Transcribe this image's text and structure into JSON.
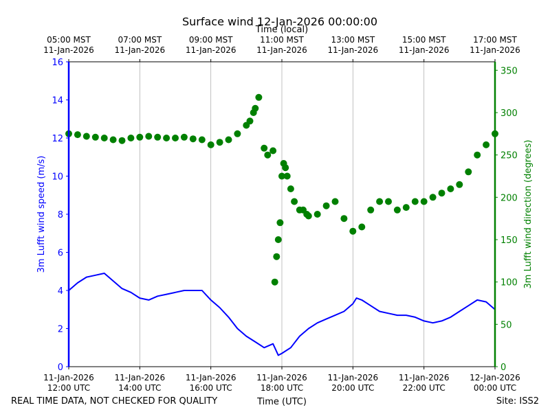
{
  "chart_data": {
    "type": "line+scatter",
    "title": "Surface wind 12-Jan-2026 00:00:00",
    "top_axis_title": "Time (local)",
    "bottom_axis_title": "Time (UTC)",
    "left_ylabel": "3m Lufft wind speed (m/s)",
    "right_ylabel": "3m Lufft wind direction (degrees)",
    "footer_left": "REAL TIME DATA, NOT CHECKED FOR QUALITY",
    "footer_right": "Site: ISS2",
    "colors": {
      "speed": "#0000ff",
      "direction": "#008000",
      "grid": "#b0b0b0",
      "axis": "#000000"
    },
    "x_range_hours": [
      12,
      24
    ],
    "ylim_speed": [
      0,
      16
    ],
    "ylim_direction": [
      0,
      360
    ],
    "left_ticks": [
      0,
      2,
      4,
      6,
      8,
      10,
      12,
      14,
      16
    ],
    "right_ticks": [
      0,
      50,
      100,
      150,
      200,
      250,
      300,
      350
    ],
    "bottom_ticks": [
      {
        "hour": 12,
        "line1": "11-Jan-2026",
        "line2": "12:00 UTC"
      },
      {
        "hour": 14,
        "line1": "11-Jan-2026",
        "line2": "14:00 UTC"
      },
      {
        "hour": 16,
        "line1": "11-Jan-2026",
        "line2": "16:00 UTC"
      },
      {
        "hour": 18,
        "line1": "11-Jan-2026",
        "line2": "18:00 UTC"
      },
      {
        "hour": 20,
        "line1": "11-Jan-2026",
        "line2": "20:00 UTC"
      },
      {
        "hour": 22,
        "line1": "11-Jan-2026",
        "line2": "22:00 UTC"
      },
      {
        "hour": 24,
        "line1": "12-Jan-2026",
        "line2": "00:00 UTC"
      }
    ],
    "top_ticks": [
      {
        "hour": 12,
        "line1": "05:00 MST",
        "line2": "11-Jan-2026"
      },
      {
        "hour": 14,
        "line1": "07:00 MST",
        "line2": "11-Jan-2026"
      },
      {
        "hour": 16,
        "line1": "09:00 MST",
        "line2": "11-Jan-2026"
      },
      {
        "hour": 18,
        "line1": "11:00 MST",
        "line2": "11-Jan-2026"
      },
      {
        "hour": 20,
        "line1": "13:00 MST",
        "line2": "11-Jan-2026"
      },
      {
        "hour": 22,
        "line1": "15:00 MST",
        "line2": "11-Jan-2026"
      },
      {
        "hour": 24,
        "line1": "17:00 MST",
        "line2": "11-Jan-2026"
      }
    ],
    "series": [
      {
        "name": "wind speed",
        "axis": "left",
        "style": "line",
        "hours": [
          12.0,
          12.25,
          12.5,
          12.75,
          13.0,
          13.25,
          13.5,
          13.75,
          14.0,
          14.25,
          14.5,
          14.75,
          15.0,
          15.25,
          15.5,
          15.75,
          16.0,
          16.25,
          16.5,
          16.75,
          17.0,
          17.25,
          17.5,
          17.75,
          17.9,
          18.0,
          18.25,
          18.5,
          18.75,
          19.0,
          19.25,
          19.5,
          19.75,
          20.0,
          20.1,
          20.25,
          20.5,
          20.75,
          21.0,
          21.25,
          21.5,
          21.75,
          22.0,
          22.25,
          22.5,
          22.75,
          23.0,
          23.25,
          23.5,
          23.75,
          24.0
        ],
        "values": [
          4.0,
          4.4,
          4.7,
          4.8,
          4.9,
          4.5,
          4.1,
          3.9,
          3.6,
          3.5,
          3.7,
          3.8,
          3.9,
          4.0,
          4.0,
          4.0,
          3.5,
          3.1,
          2.6,
          2.0,
          1.6,
          1.3,
          1.0,
          1.2,
          0.6,
          0.7,
          1.0,
          1.6,
          2.0,
          2.3,
          2.5,
          2.7,
          2.9,
          3.3,
          3.6,
          3.5,
          3.2,
          2.9,
          2.8,
          2.7,
          2.7,
          2.6,
          2.4,
          2.3,
          2.4,
          2.6,
          2.9,
          3.2,
          3.5,
          3.4,
          3.0
        ]
      },
      {
        "name": "wind direction",
        "axis": "right",
        "style": "dots",
        "hours": [
          12.0,
          12.25,
          12.5,
          12.75,
          13.0,
          13.25,
          13.5,
          13.75,
          14.0,
          14.25,
          14.5,
          14.75,
          15.0,
          15.25,
          15.5,
          15.75,
          16.0,
          16.25,
          16.5,
          16.75,
          17.0,
          17.1,
          17.2,
          17.25,
          17.35,
          17.5,
          17.6,
          17.75,
          17.8,
          17.85,
          17.9,
          17.95,
          18.0,
          18.05,
          18.1,
          18.15,
          18.25,
          18.35,
          18.5,
          18.6,
          18.7,
          18.75,
          19.0,
          19.25,
          19.5,
          19.75,
          20.0,
          20.25,
          20.5,
          20.75,
          21.0,
          21.25,
          21.5,
          21.75,
          22.0,
          22.25,
          22.5,
          22.75,
          23.0,
          23.25,
          23.5,
          23.75,
          24.0
        ],
        "values": [
          275,
          274,
          272,
          271,
          270,
          268,
          267,
          270,
          271,
          272,
          271,
          270,
          270,
          271,
          269,
          268,
          262,
          265,
          268,
          275,
          285,
          290,
          300,
          305,
          318,
          258,
          250,
          255,
          100,
          130,
          150,
          170,
          225,
          240,
          235,
          225,
          210,
          195,
          185,
          185,
          180,
          178,
          180,
          190,
          195,
          175,
          160,
          165,
          185,
          195,
          195,
          185,
          188,
          195,
          195,
          200,
          205,
          210,
          215,
          230,
          250,
          262,
          275
        ]
      }
    ]
  }
}
